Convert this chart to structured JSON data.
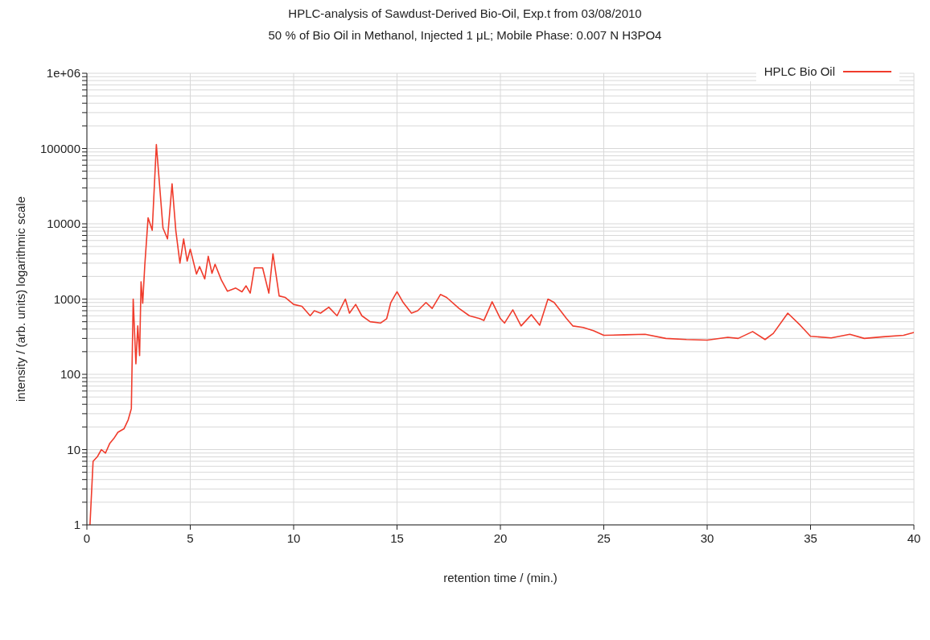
{
  "chart_data": {
    "type": "line",
    "title": "HPLC-analysis of Sawdust-Derived Bio-Oil, Exp.t from 03/08/2010",
    "subtitle": "50 % of Bio Oil in Methanol, Injected 1 μL; Mobile Phase: 0.007 N H3PO4",
    "xlabel": "retention time / (min.)",
    "ylabel": "intensity / (arb. units) logarithmic scale",
    "log": "y",
    "grid": true,
    "legend": "top right",
    "marker": "none",
    "line_style": "solid",
    "xlim": [
      0,
      40
    ],
    "xticks": [
      0,
      5,
      10,
      15,
      20,
      25,
      30,
      35,
      40
    ],
    "ylim": [
      1,
      1000000
    ],
    "yticks": [
      1,
      {
        "value": 2,
        "label": null
      },
      {
        "value": 3,
        "label": null
      },
      {
        "value": 4,
        "label": null
      },
      {
        "value": 5,
        "label": null
      },
      {
        "value": 6,
        "label": null
      },
      {
        "value": 7,
        "label": null
      },
      {
        "value": 8,
        "label": null
      },
      {
        "value": 9,
        "label": null
      },
      10,
      {
        "value": 20,
        "label": null
      },
      {
        "value": 30,
        "label": null
      },
      {
        "value": 40,
        "label": null
      },
      {
        "value": 50,
        "label": null
      },
      {
        "value": 60,
        "label": null
      },
      {
        "value": 70,
        "label": null
      },
      {
        "value": 80,
        "label": null
      },
      {
        "value": 90,
        "label": null
      },
      100,
      {
        "value": 200,
        "label": null
      },
      {
        "value": 300,
        "label": null
      },
      {
        "value": 400,
        "label": null
      },
      {
        "value": 500,
        "label": null
      },
      {
        "value": 600,
        "label": null
      },
      {
        "value": 700,
        "label": null
      },
      {
        "value": 800,
        "label": null
      },
      {
        "value": 900,
        "label": null
      },
      1000,
      {
        "value": 2000,
        "label": null
      },
      {
        "value": 3000,
        "label": null
      },
      {
        "value": 4000,
        "label": null
      },
      {
        "value": 5000,
        "label": null
      },
      {
        "value": 6000,
        "label": null
      },
      {
        "value": 7000,
        "label": null
      },
      {
        "value": 8000,
        "label": null
      },
      {
        "value": 9000,
        "label": null
      },
      10000,
      {
        "value": 20000,
        "label": null
      },
      {
        "value": 30000,
        "label": null
      },
      {
        "value": 40000,
        "label": null
      },
      {
        "value": 50000,
        "label": null
      },
      {
        "value": 60000,
        "label": null
      },
      {
        "value": 70000,
        "label": null
      },
      {
        "value": 80000,
        "label": null
      },
      {
        "value": 90000,
        "label": null
      },
      100000,
      {
        "value": 200000,
        "label": null
      },
      {
        "value": 300000,
        "label": null
      },
      {
        "value": 400000,
        "label": null
      },
      {
        "value": 500000,
        "label": null
      },
      {
        "value": 600000,
        "label": null
      },
      {
        "value": 700000,
        "label": null
      },
      {
        "value": 800000,
        "label": null
      },
      {
        "value": 900000,
        "label": null
      },
      {
        "value": 1000000,
        "label": "1e+06"
      }
    ],
    "series": [
      {
        "name": "HPLC Bio Oil",
        "color": "#f03c2c",
        "x": [
          0.15,
          0.3,
          0.5,
          0.7,
          0.9,
          1.1,
          1.3,
          1.5,
          1.8,
          2.0,
          2.15,
          2.24,
          2.37,
          2.46,
          2.55,
          2.62,
          2.7,
          2.8,
          2.96,
          3.16,
          3.36,
          3.68,
          3.9,
          4.12,
          4.3,
          4.5,
          4.68,
          4.85,
          5.0,
          5.3,
          5.45,
          5.7,
          5.87,
          6.05,
          6.2,
          6.5,
          6.8,
          7.2,
          7.5,
          7.7,
          7.9,
          8.1,
          8.5,
          8.8,
          9.0,
          9.3,
          9.6,
          10.0,
          10.4,
          10.8,
          11.0,
          11.3,
          11.7,
          12.1,
          12.5,
          12.7,
          13.0,
          13.3,
          13.7,
          14.2,
          14.5,
          14.7,
          15.0,
          15.3,
          15.7,
          16.0,
          16.4,
          16.7,
          17.1,
          17.4,
          18.0,
          18.5,
          19.0,
          19.2,
          19.6,
          20.0,
          20.2,
          20.6,
          21.0,
          21.5,
          21.9,
          22.3,
          22.6,
          23.2,
          23.5,
          24.0,
          24.5,
          25.0,
          26.0,
          27.0,
          28.0,
          29.0,
          30.0,
          31.0,
          31.5,
          32.2,
          32.8,
          33.2,
          33.9,
          34.5,
          35.0,
          36.0,
          36.9,
          37.6,
          38.5,
          39.5,
          40.0
        ],
        "values": [
          1,
          7,
          8,
          10,
          9,
          12,
          14,
          17,
          19,
          25,
          35,
          1000,
          138,
          440,
          177,
          1700,
          880,
          2800,
          12000,
          8200,
          113000,
          8800,
          6300,
          34000,
          8200,
          3000,
          6300,
          3200,
          4600,
          2150,
          2700,
          1850,
          3700,
          2200,
          2900,
          1800,
          1270,
          1400,
          1250,
          1500,
          1200,
          2600,
          2600,
          1200,
          4000,
          1100,
          1050,
          850,
          800,
          600,
          700,
          650,
          780,
          600,
          1000,
          650,
          850,
          600,
          500,
          480,
          550,
          900,
          1250,
          900,
          650,
          700,
          900,
          750,
          1150,
          1050,
          750,
          600,
          550,
          520,
          920,
          550,
          480,
          720,
          440,
          620,
          450,
          1000,
          900,
          550,
          440,
          420,
          380,
          330,
          335,
          340,
          300,
          290,
          285,
          310,
          300,
          370,
          290,
          350,
          650,
          450,
          320,
          305,
          340,
          300,
          315,
          330,
          360
        ]
      }
    ]
  }
}
